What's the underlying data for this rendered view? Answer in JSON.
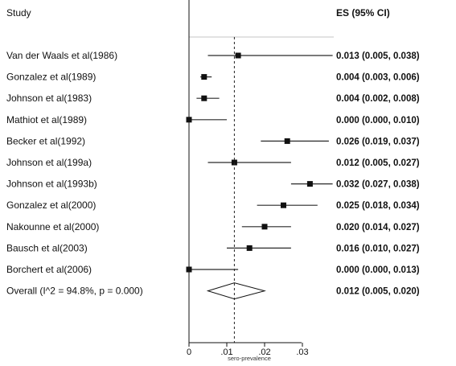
{
  "chart_data": {
    "type": "forest",
    "header_study": "Study",
    "header_es": "ES (95% CI)",
    "xlabel": "sero-prevalence",
    "xticks": [
      "0",
      ".01",
      ".02",
      ".03"
    ],
    "xlim": [
      0,
      0.04
    ],
    "reference_line": 0.012,
    "studies": [
      {
        "label": "Van der Waals et al(1986)",
        "es": 0.013,
        "lo": 0.005,
        "hi": 0.038,
        "es_text": "0.013 (0.005, 0.038)"
      },
      {
        "label": "Gonzalez et al(1989)",
        "es": 0.004,
        "lo": 0.003,
        "hi": 0.006,
        "es_text": "0.004 (0.003, 0.006)"
      },
      {
        "label": "Johnson et al(1983)",
        "es": 0.004,
        "lo": 0.002,
        "hi": 0.008,
        "es_text": "0.004 (0.002, 0.008)"
      },
      {
        "label": "Mathiot et al(1989)",
        "es": 0.0,
        "lo": 0.0,
        "hi": 0.01,
        "es_text": "0.000 (0.000, 0.010)"
      },
      {
        "label": "Becker et al(1992)",
        "es": 0.026,
        "lo": 0.019,
        "hi": 0.037,
        "es_text": "0.026 (0.019, 0.037)"
      },
      {
        "label": "Johnson et al(199a)",
        "es": 0.012,
        "lo": 0.005,
        "hi": 0.027,
        "es_text": "0.012 (0.005, 0.027)"
      },
      {
        "label": "Johnson et al(1993b)",
        "es": 0.032,
        "lo": 0.027,
        "hi": 0.038,
        "es_text": "0.032 (0.027, 0.038)"
      },
      {
        "label": "Gonzalez et al(2000)",
        "es": 0.025,
        "lo": 0.018,
        "hi": 0.034,
        "es_text": "0.025 (0.018, 0.034)"
      },
      {
        "label": "Nakounne et al(2000)",
        "es": 0.02,
        "lo": 0.014,
        "hi": 0.027,
        "es_text": "0.020 (0.014, 0.027)"
      },
      {
        "label": "Bausch et al(2003)",
        "es": 0.016,
        "lo": 0.01,
        "hi": 0.027,
        "es_text": "0.016 (0.010, 0.027)"
      },
      {
        "label": "Borchert et al(2006)",
        "es": 0.0,
        "lo": 0.0,
        "hi": 0.013,
        "es_text": "0.000 (0.000, 0.013)"
      }
    ],
    "overall": {
      "label": "Overall  (I^2 = 94.8%, p = 0.000)",
      "es": 0.012,
      "lo": 0.005,
      "hi": 0.02,
      "es_text": "0.012 (0.005, 0.020)"
    }
  }
}
